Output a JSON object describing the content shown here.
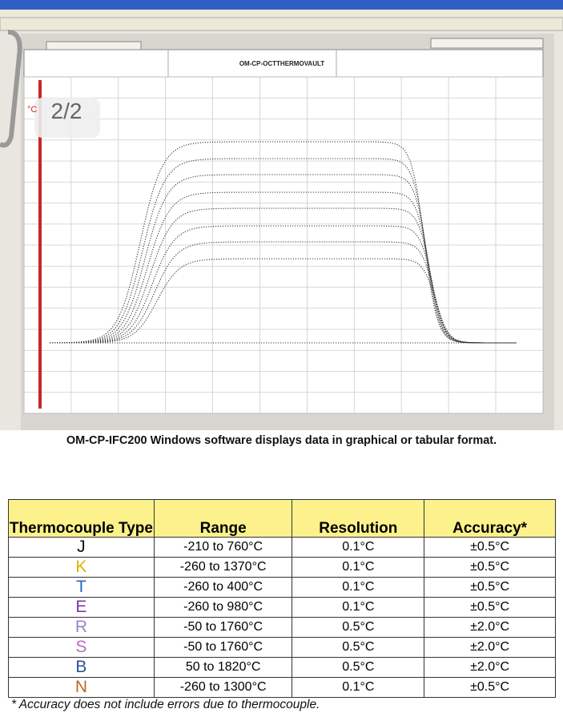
{
  "screenshot": {
    "page_indicator": "2/2",
    "device_title": "OM-CP-OCTTHERMOVAULT",
    "unit": "°C"
  },
  "caption": "OM-CP-IFC200 Windows software displays data in graphical or tabular format.",
  "table": {
    "headers": [
      "Thermocouple Type",
      "Range",
      "Resolution",
      "Accuracy*"
    ],
    "rows": [
      [
        "J",
        "-210 to 760°C",
        "0.1°C",
        "±0.5°C"
      ],
      [
        "K",
        "-260 to 1370°C",
        "0.1°C",
        "±0.5°C"
      ],
      [
        "T",
        "-260 to 400°C",
        "0.1°C",
        "±0.5°C"
      ],
      [
        "E",
        "-260 to 980°C",
        "0.1°C",
        "±0.5°C"
      ],
      [
        "R",
        "-50 to 1760°C",
        "0.5°C",
        "±2.0°C"
      ],
      [
        "S",
        "-50 to 1760°C",
        "0.5°C",
        "±2.0°C"
      ],
      [
        "B",
        "50 to 1820°C",
        "0.5°C",
        "±2.0°C"
      ],
      [
        "N",
        "-260 to 1300°C",
        "0.1°C",
        "±0.5°C"
      ]
    ]
  },
  "footnote": "* Accuracy does not include errors due to thermocouple."
}
